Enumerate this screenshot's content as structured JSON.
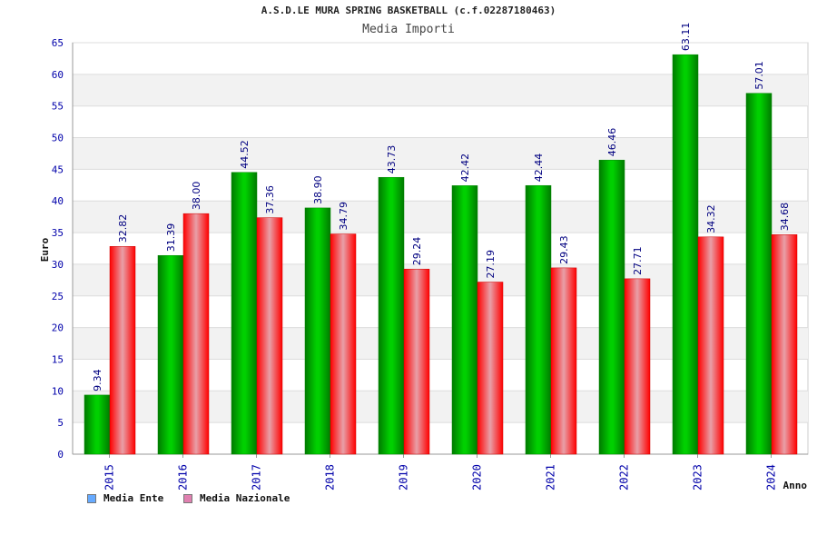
{
  "title": "A.S.D.LE MURA SPRING BASKETBALL (c.f.02287180463)",
  "subtitle": "Media Importi",
  "legend": {
    "ente_label": "Media Ente",
    "nazionale_label": "Media Nazionale"
  },
  "colors": {
    "ente": "#00b400",
    "nazionale": "#ff1a1a",
    "ente_legend": "#66aaff",
    "nazionale_legend": "#e080b0",
    "axis_text": "#0000aa",
    "value_text": "#000080"
  },
  "chart_data": {
    "type": "bar",
    "title": "A.S.D.LE MURA SPRING BASKETBALL (c.f.02287180463)",
    "subtitle": "Media Importi",
    "xlabel": "Anno",
    "ylabel": "Euro",
    "ylim": [
      0,
      65
    ],
    "yticks": [
      0,
      5,
      10,
      15,
      20,
      25,
      30,
      35,
      40,
      45,
      50,
      55,
      60,
      65
    ],
    "grid": true,
    "legend_position": "bottom-left",
    "categories": [
      "2015",
      "2016",
      "2017",
      "2018",
      "2019",
      "2020",
      "2021",
      "2022",
      "2023",
      "2024"
    ],
    "series": [
      {
        "name": "Media Ente",
        "values": [
          9.34,
          31.39,
          44.52,
          38.9,
          43.73,
          42.42,
          42.44,
          46.46,
          63.11,
          57.01
        ],
        "labels": [
          "9.34",
          "31.39",
          "44.52",
          "38.90",
          "43.73",
          "42.42",
          "42.44",
          "46.46",
          "63.11",
          "57.01"
        ]
      },
      {
        "name": "Media Nazionale",
        "values": [
          32.82,
          38.0,
          37.36,
          34.79,
          29.24,
          27.19,
          29.43,
          27.71,
          34.32,
          34.68
        ],
        "labels": [
          "32.82",
          "38.00",
          "37.36",
          "34.79",
          "29.24",
          "27.19",
          "29.43",
          "27.71",
          "34.32",
          "34.68"
        ]
      }
    ]
  }
}
